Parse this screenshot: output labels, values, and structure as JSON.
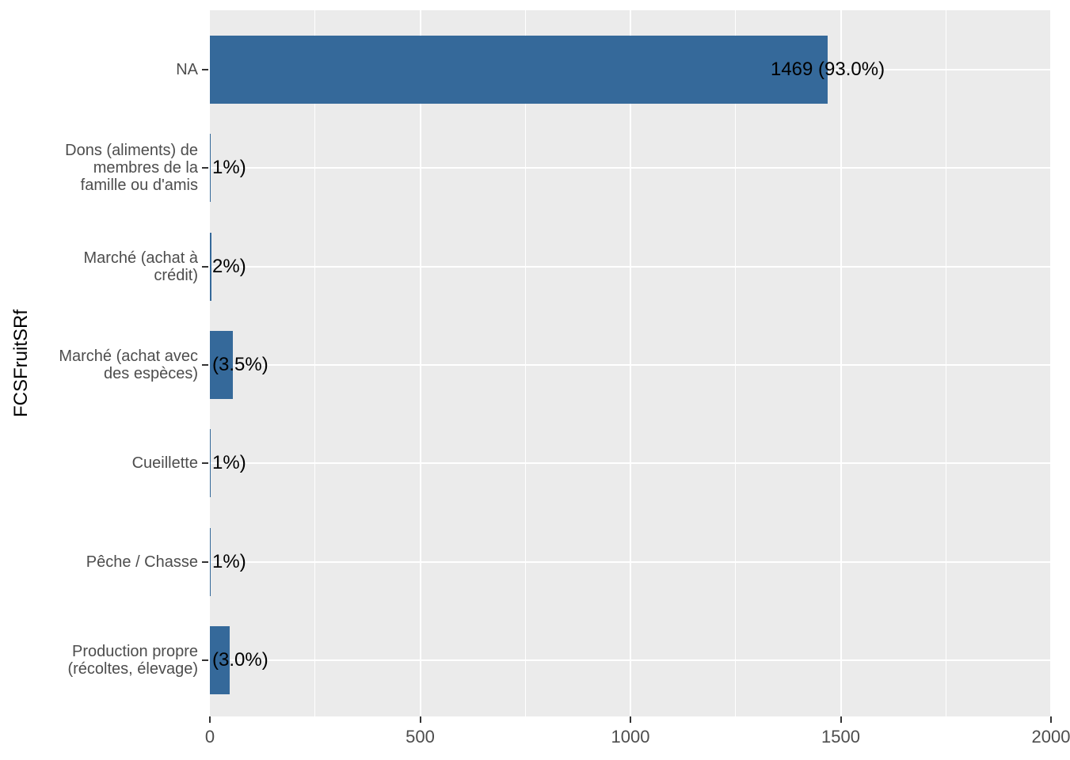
{
  "chart_data": {
    "type": "bar",
    "orientation": "horizontal",
    "title": "",
    "xlabel": "",
    "ylabel": "FCSFruitSRf",
    "xlim": [
      0,
      2000
    ],
    "x_ticks": [
      "0",
      "500",
      "1000",
      "1500",
      "2000"
    ],
    "x_tick_values": [
      0,
      500,
      1000,
      1500,
      2000
    ],
    "x_minor_tick_values": [
      250,
      750,
      1250,
      1750
    ],
    "grid": "white major and minor vertical gridlines, white major horizontal gridlines on gray panel",
    "legend_position": "none",
    "categories": [
      {
        "lines": [
          "NA"
        ],
        "value": 1469,
        "bar_label": "1469 (93.0%)",
        "bar_label_anchor": "bar-end"
      },
      {
        "lines": [
          "Dons (aliments) de",
          "membres de la",
          "famille ou d'amis"
        ],
        "value": 2,
        "bar_label": "1%)",
        "bar_label_anchor": "panel-left"
      },
      {
        "lines": [
          "Marché (achat à",
          "crédit)"
        ],
        "value": 3,
        "bar_label": "2%)",
        "bar_label_anchor": "panel-left"
      },
      {
        "lines": [
          "Marché (achat avec",
          "des espèces)"
        ],
        "value": 55,
        "bar_label": "(3.5%)",
        "bar_label_anchor": "panel-left"
      },
      {
        "lines": [
          "Cueillette"
        ],
        "value": 2,
        "bar_label": "1%)",
        "bar_label_anchor": "panel-left"
      },
      {
        "lines": [
          "Pêche / Chasse"
        ],
        "value": 1,
        "bar_label": "1%)",
        "bar_label_anchor": "panel-left"
      },
      {
        "lines": [
          "Production propre",
          "(récoltes, élevage)"
        ],
        "value": 47,
        "bar_label": "(3.0%)",
        "bar_label_anchor": "panel-left"
      }
    ],
    "colors": {
      "bar": "#35699a",
      "panel_background": "#ebebeb",
      "gridline": "#ffffff",
      "axis_text": "#4d4d4d",
      "tick_mark": "#333333",
      "bar_label_text": "#000000",
      "figure_background": "#ffffff"
    }
  }
}
